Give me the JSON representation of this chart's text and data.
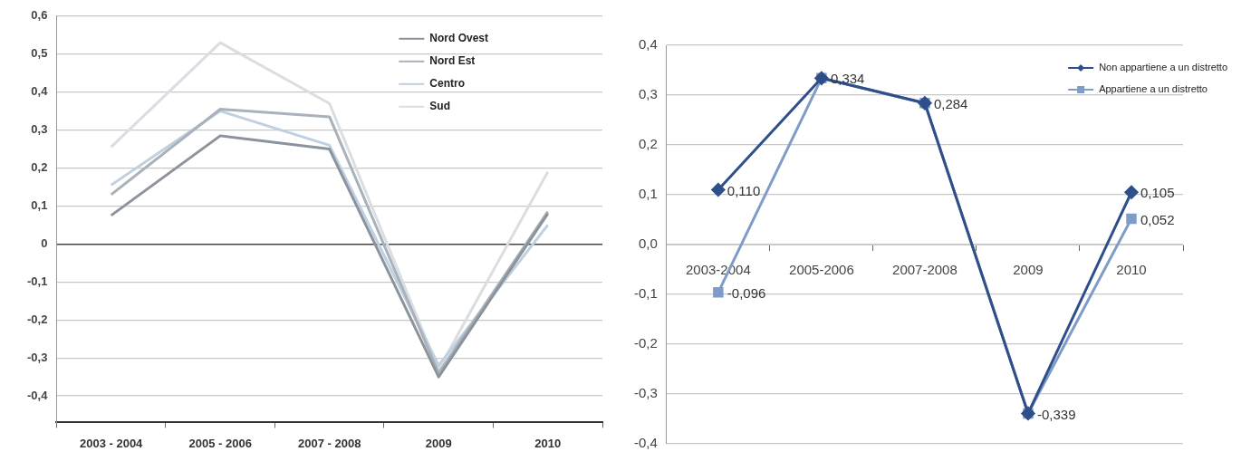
{
  "chart_data": [
    {
      "type": "line",
      "categories": [
        "2003 - 2004",
        "2005 - 2006",
        "2007 - 2008",
        "2009",
        "2010"
      ],
      "series": [
        {
          "name": "Nord Ovest",
          "color": "#8c939c",
          "values": [
            0.075,
            0.285,
            0.25,
            -0.35,
            0.08
          ]
        },
        {
          "name": "Nord Est",
          "color": "#a9b1ba",
          "values": [
            0.13,
            0.355,
            0.335,
            -0.34,
            0.085
          ]
        },
        {
          "name": "Centro",
          "color": "#bfd0e0",
          "values": [
            0.155,
            0.35,
            0.26,
            -0.32,
            0.05
          ]
        },
        {
          "name": "Sud",
          "color": "#dadde2",
          "values": [
            0.255,
            0.53,
            0.37,
            -0.33,
            0.19
          ]
        }
      ],
      "ylim": [
        -0.47,
        0.6
      ],
      "yticks": [
        {
          "value": 0.6,
          "label": "0,6"
        },
        {
          "value": 0.5,
          "label": "0,5"
        },
        {
          "value": 0.4,
          "label": "0,4"
        },
        {
          "value": 0.3,
          "label": "0,3"
        },
        {
          "value": 0.2,
          "label": "0,2"
        },
        {
          "value": 0.1,
          "label": "0,1"
        },
        0,
        {
          "value": -0.1,
          "label": "-0,1"
        },
        {
          "value": -0.2,
          "label": "-0,2"
        },
        {
          "value": -0.3,
          "label": "-0,3"
        },
        {
          "value": -0.4,
          "label": "-0,4"
        }
      ],
      "grid": "y",
      "legend": "top right"
    },
    {
      "type": "line",
      "categories": [
        "2003-2004",
        "2005-2006",
        "2007-2008",
        "2009",
        "2010"
      ],
      "series": [
        {
          "name": "Non appartiene a un distretto",
          "color": "#2e4f8a",
          "marker": "diamond",
          "values": [
            0.11,
            0.334,
            0.284,
            -0.339,
            0.105
          ],
          "value_labels": [
            "0,110",
            null,
            null,
            null,
            "0,105"
          ]
        },
        {
          "name": "Appartiene a un distretto",
          "color": "#7f9cc8",
          "marker": "square",
          "values": [
            -0.096,
            0.334,
            0.284,
            -0.339,
            0.052
          ],
          "value_labels": [
            "-0,096",
            "0,334",
            "0,284",
            "-0,339",
            "0,052"
          ]
        }
      ],
      "ylim": [
        -0.4,
        0.4
      ],
      "yticks": [
        {
          "value": 0.4,
          "label": "0,4"
        },
        {
          "value": 0.3,
          "label": "0,3"
        },
        {
          "value": 0.2,
          "label": "0,2"
        },
        {
          "value": 0.1,
          "label": "0,1"
        },
        {
          "value": 0,
          "label": "0,0"
        },
        {
          "value": -0.1,
          "label": "-0,1"
        },
        {
          "value": -0.2,
          "label": "-0,2"
        },
        {
          "value": -0.3,
          "label": "-0,3"
        },
        {
          "value": -0.4,
          "label": "-0,4"
        }
      ],
      "grid": "y",
      "legend": "top right"
    }
  ]
}
